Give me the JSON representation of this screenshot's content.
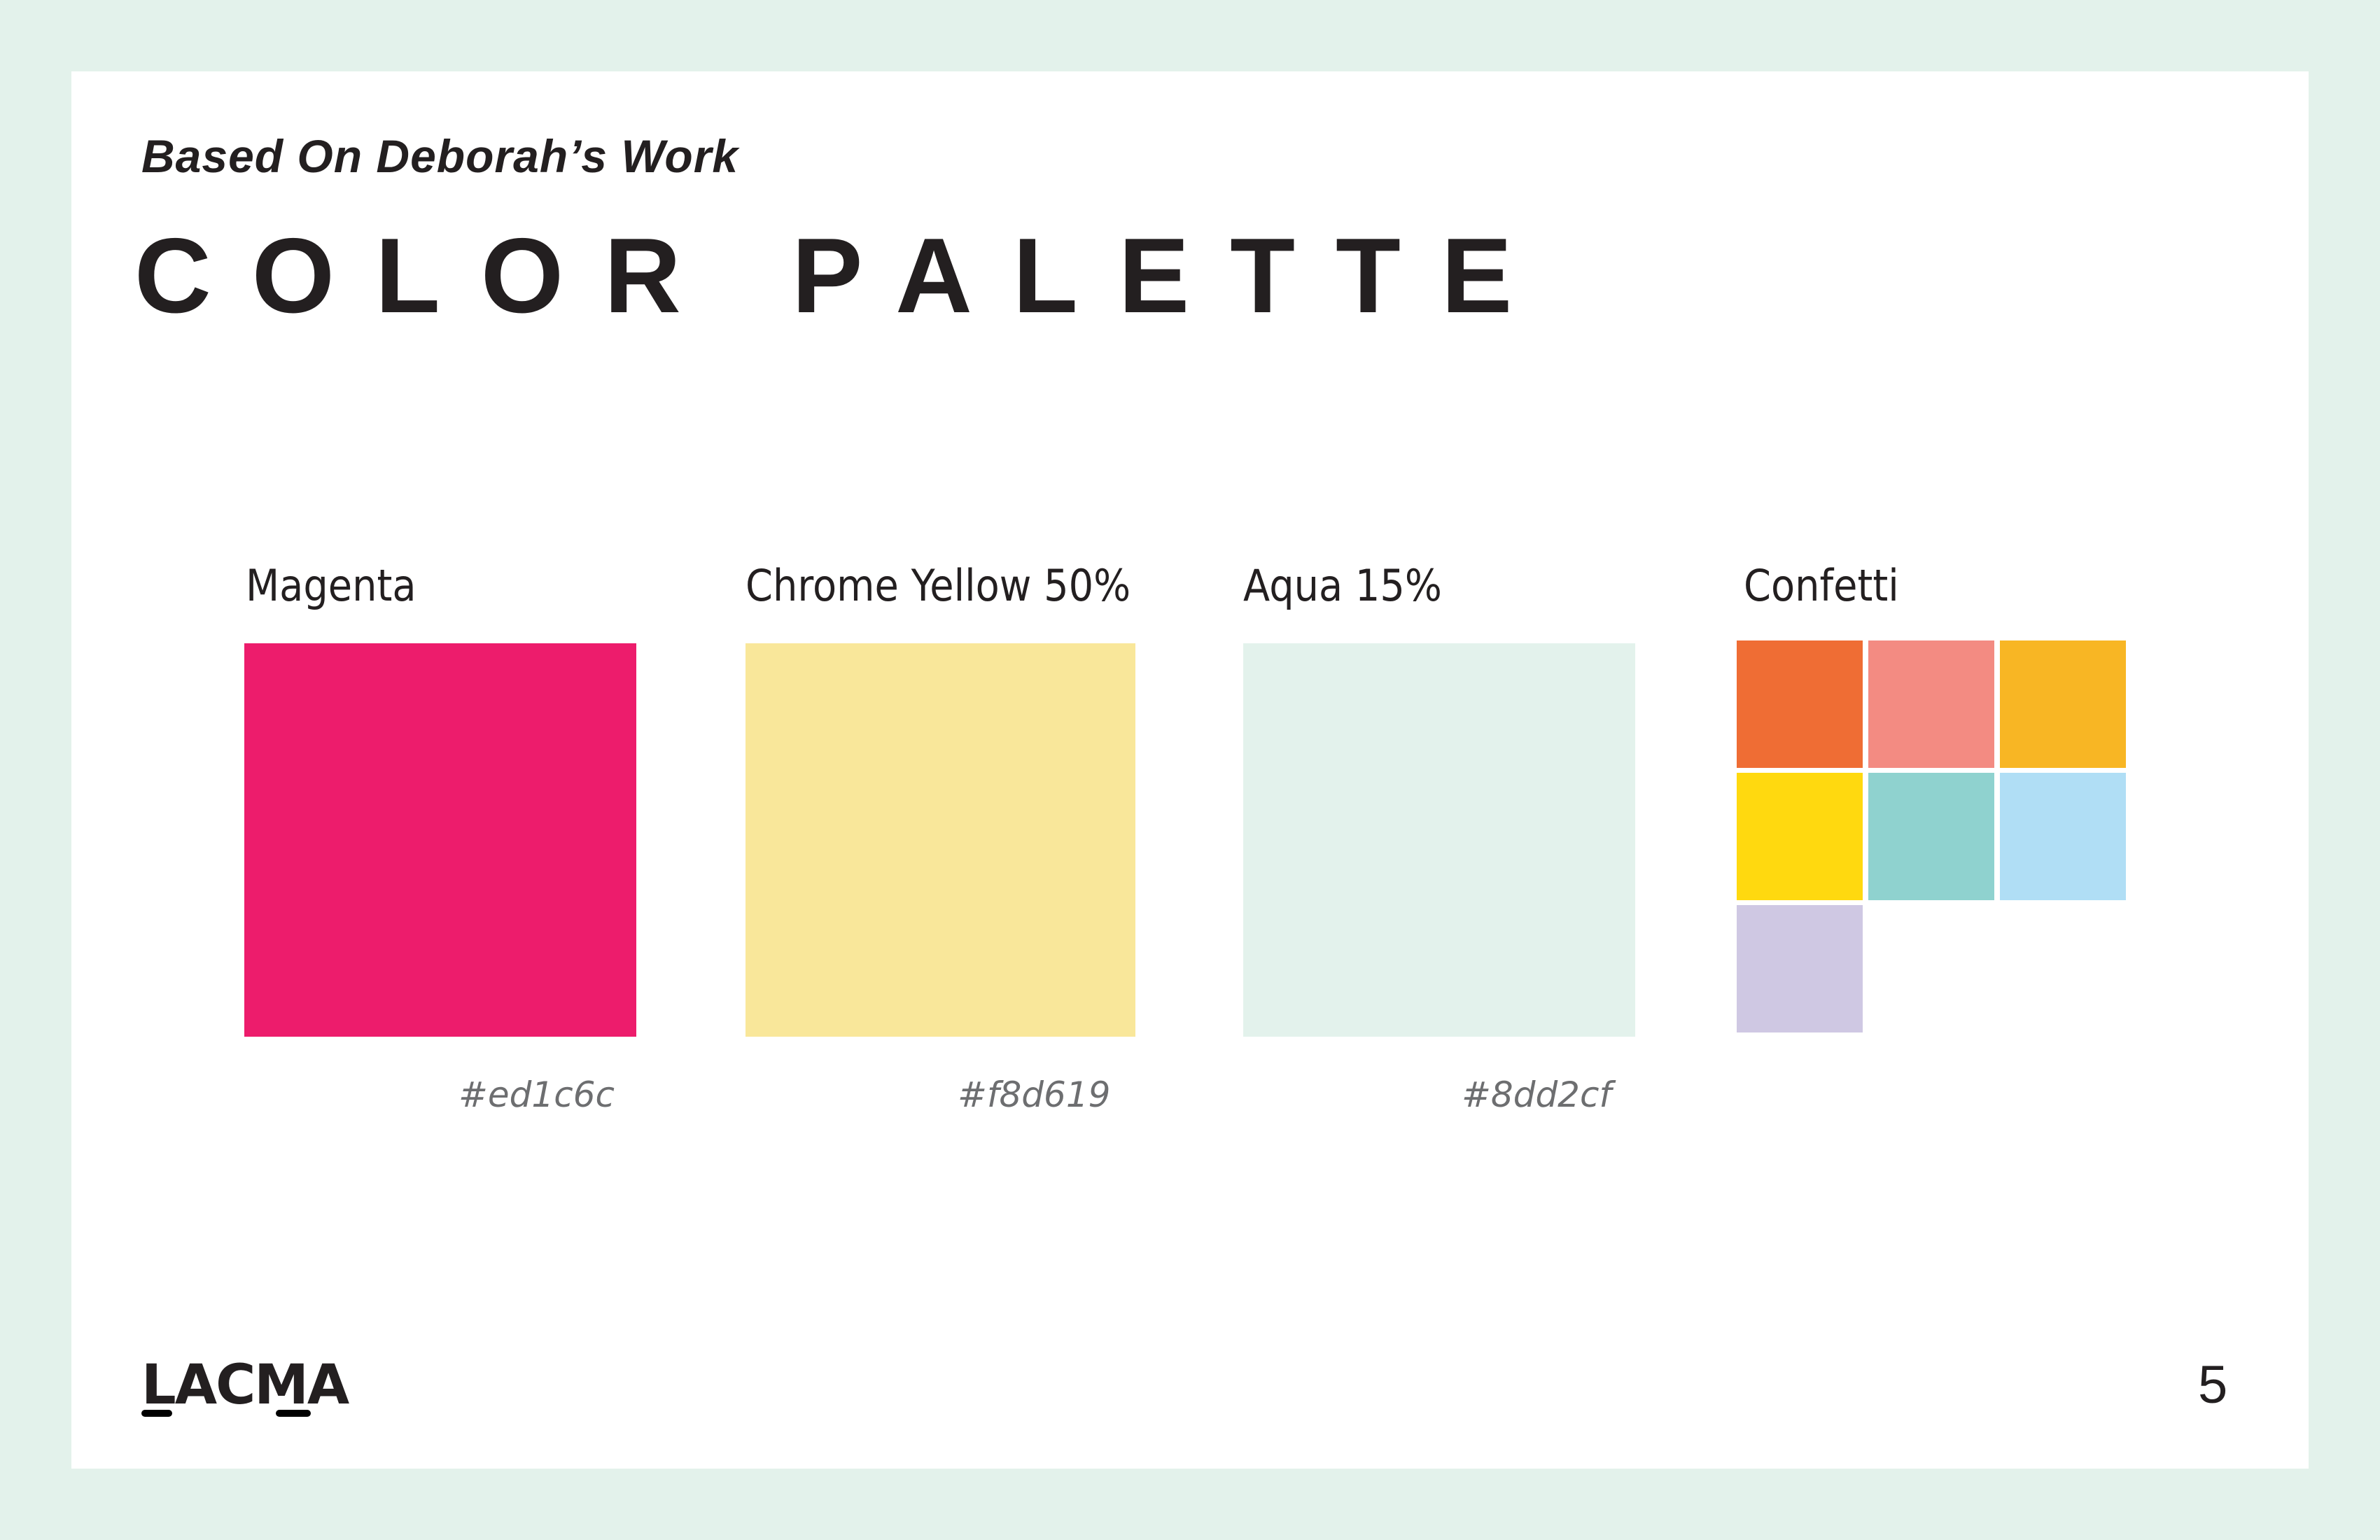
{
  "header": {
    "subtitle": "Based On Deborah’s Work",
    "title": "COLOR PALETTE"
  },
  "swatches": [
    {
      "label": "Magenta",
      "hex": "#ed1c6c",
      "color": "#ed1c6c"
    },
    {
      "label": "Chrome Yellow 50%",
      "hex": "#f8d619",
      "color": "#f9e79a"
    },
    {
      "label": "Aqua 15%",
      "hex": "#8dd2cf",
      "color": "#e3f2ec"
    }
  ],
  "confetti": {
    "label": "Confetti",
    "colors": [
      "#ef6d34",
      "#f38b82",
      "#f8b624",
      "#ffd90f",
      "#8fd2cf",
      "#b0def5",
      "#cfc8e3"
    ]
  },
  "footer": {
    "logo": "LACMA",
    "page_number": "5"
  },
  "colors": {
    "background": "#e3f2eb",
    "card": "#ffffff",
    "text": "#231f20"
  }
}
